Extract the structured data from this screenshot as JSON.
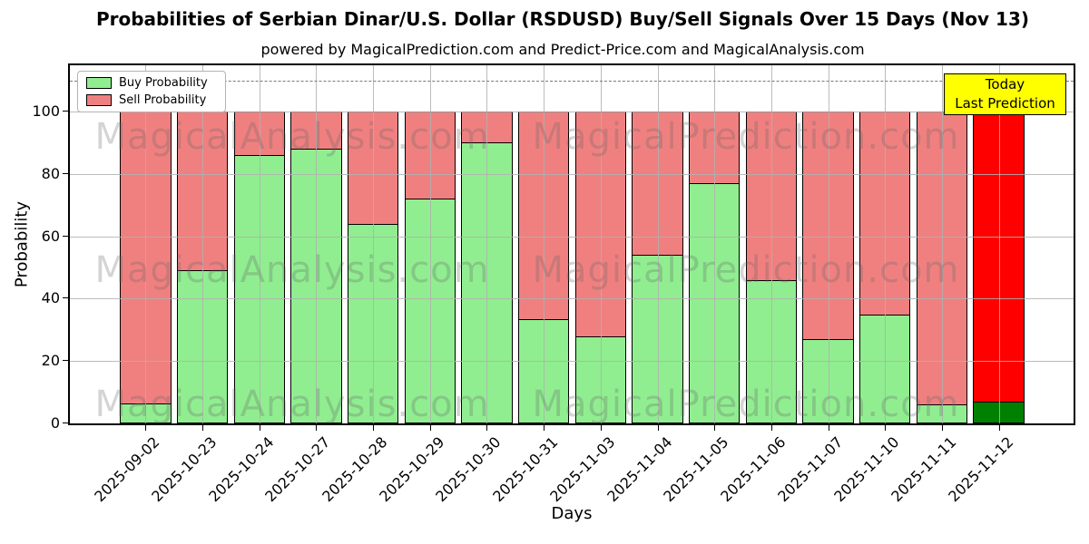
{
  "title": "Probabilities of Serbian Dinar/U.S. Dollar (RSDUSD) Buy/Sell Signals Over 15 Days (Nov 13)",
  "subtitle": "powered by MagicalPrediction.com and Predict-Price.com and MagicalAnalysis.com",
  "legend": {
    "items": [
      {
        "label": "Buy Probability",
        "color": "#90ee90"
      },
      {
        "label": "Sell Probability",
        "color": "#f08080"
      }
    ]
  },
  "annotation": {
    "line1": "Today",
    "line2": "Last Prediction",
    "bg_color": "#ffff00"
  },
  "watermarks": [
    "MagicalAnalysis.com",
    "MagicalPrediction.com"
  ],
  "chart_data": {
    "type": "bar",
    "stacked": true,
    "title": "Probabilities of Serbian Dinar/U.S. Dollar (RSDUSD) Buy/Sell Signals Over 15 Days (Nov 13)",
    "xlabel": "Days",
    "ylabel": "Probability",
    "ylim": [
      0,
      116
    ],
    "yticks": [
      0,
      20,
      40,
      60,
      80,
      100
    ],
    "dashed_hline": 110,
    "grid": true,
    "legend_position": "upper left",
    "categories": [
      "2025-09-02",
      "2025-10-23",
      "2025-10-24",
      "2025-10-27",
      "2025-10-28",
      "2025-10-29",
      "2025-10-30",
      "2025-10-31",
      "2025-11-03",
      "2025-11-04",
      "2025-11-05",
      "2025-11-06",
      "2025-11-07",
      "2025-11-10",
      "2025-11-11",
      "2025-11-12"
    ],
    "series": [
      {
        "name": "Buy Probability",
        "color": "#90ee90",
        "values": [
          6.5,
          49,
          86,
          88,
          64,
          72,
          90,
          33.5,
          28,
          54,
          77,
          46,
          27,
          35,
          6,
          7
        ]
      },
      {
        "name": "Sell Probability",
        "color": "#f08080",
        "values": [
          93.5,
          51,
          14,
          12,
          36,
          28,
          10,
          66.5,
          72,
          46,
          23,
          54,
          73,
          65,
          94,
          93
        ]
      }
    ],
    "today_bar": {
      "index": 15,
      "buy_color": "#008000",
      "sell_color": "#ff0000"
    }
  }
}
